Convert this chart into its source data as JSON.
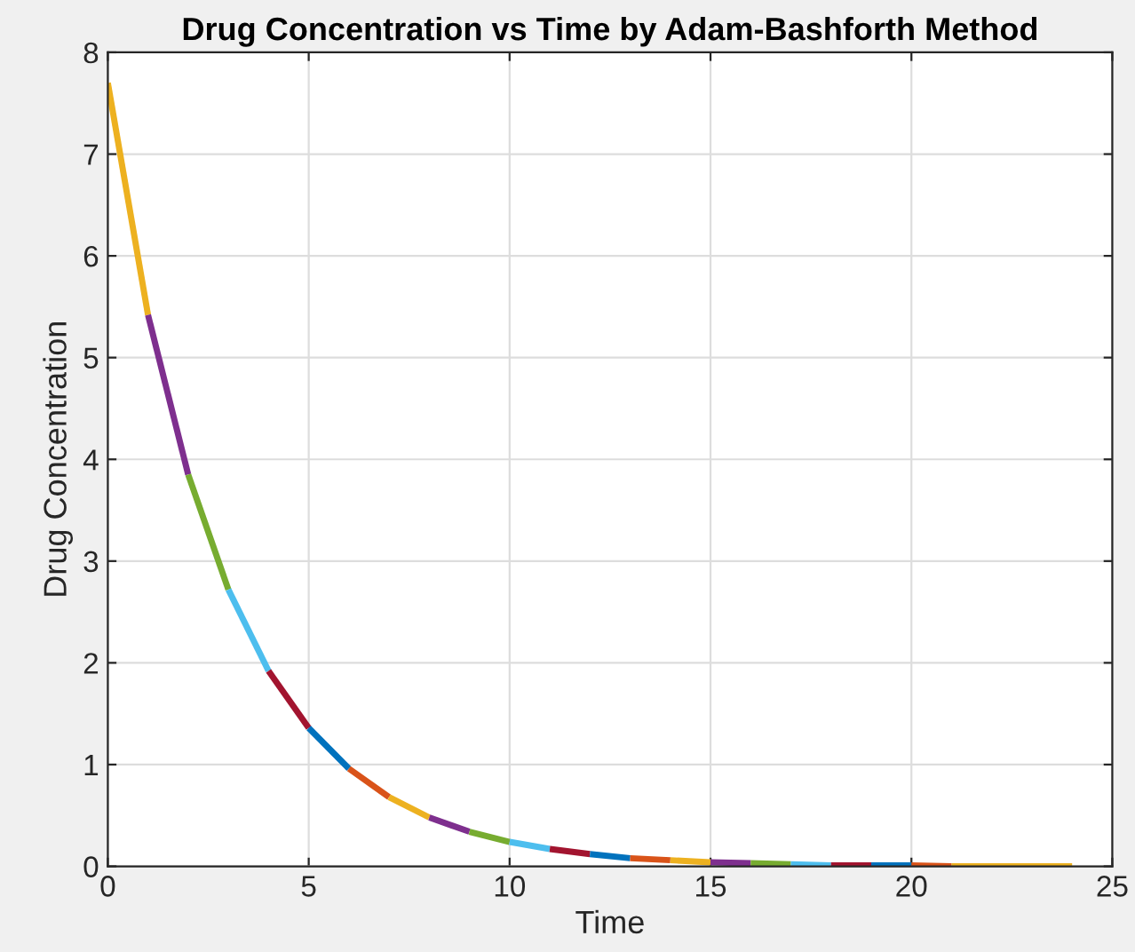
{
  "chart_data": {
    "type": "line",
    "title": "Drug Concentration vs Time by Adam-Bashforth Method",
    "xlabel": "Time",
    "ylabel": "Drug Concentration",
    "xlim": [
      0,
      25
    ],
    "ylim": [
      0,
      8
    ],
    "xticks": [
      0,
      5,
      10,
      15,
      20,
      25
    ],
    "yticks": [
      0,
      1,
      2,
      3,
      4,
      5,
      6,
      7,
      8
    ],
    "grid": true,
    "series": [
      {
        "color": "#edb120",
        "x": [
          0,
          1
        ],
        "values": [
          7.7,
          5.42
        ]
      },
      {
        "color": "#7e2f8e",
        "x": [
          1,
          2
        ],
        "values": [
          5.42,
          3.85
        ]
      },
      {
        "color": "#77ac30",
        "x": [
          2,
          3
        ],
        "values": [
          3.85,
          2.72
        ]
      },
      {
        "color": "#4dbeee",
        "x": [
          3,
          4
        ],
        "values": [
          2.72,
          1.92
        ]
      },
      {
        "color": "#a2142f",
        "x": [
          4,
          5
        ],
        "values": [
          1.92,
          1.36
        ]
      },
      {
        "color": "#0072bd",
        "x": [
          5,
          6
        ],
        "values": [
          1.36,
          0.96
        ]
      },
      {
        "color": "#d95319",
        "x": [
          6,
          7
        ],
        "values": [
          0.96,
          0.68
        ]
      },
      {
        "color": "#edb120",
        "x": [
          7,
          8
        ],
        "values": [
          0.68,
          0.48
        ]
      },
      {
        "color": "#7e2f8e",
        "x": [
          8,
          9
        ],
        "values": [
          0.48,
          0.34
        ]
      },
      {
        "color": "#77ac30",
        "x": [
          9,
          10
        ],
        "values": [
          0.34,
          0.24
        ]
      },
      {
        "color": "#4dbeee",
        "x": [
          10,
          11
        ],
        "values": [
          0.24,
          0.17
        ]
      },
      {
        "color": "#a2142f",
        "x": [
          11,
          12
        ],
        "values": [
          0.17,
          0.12
        ]
      },
      {
        "color": "#0072bd",
        "x": [
          12,
          13
        ],
        "values": [
          0.12,
          0.08
        ]
      },
      {
        "color": "#d95319",
        "x": [
          13,
          14
        ],
        "values": [
          0.08,
          0.06
        ]
      },
      {
        "color": "#edb120",
        "x": [
          14,
          15
        ],
        "values": [
          0.06,
          0.04
        ]
      },
      {
        "color": "#7e2f8e",
        "x": [
          15,
          16
        ],
        "values": [
          0.04,
          0.03
        ]
      },
      {
        "color": "#77ac30",
        "x": [
          16,
          17
        ],
        "values": [
          0.03,
          0.02
        ]
      },
      {
        "color": "#4dbeee",
        "x": [
          17,
          18
        ],
        "values": [
          0.02,
          0.01
        ]
      },
      {
        "color": "#a2142f",
        "x": [
          18,
          19
        ],
        "values": [
          0.01,
          0.01
        ]
      },
      {
        "color": "#0072bd",
        "x": [
          19,
          20
        ],
        "values": [
          0.01,
          0.01
        ]
      },
      {
        "color": "#d95319",
        "x": [
          20,
          21
        ],
        "values": [
          0.01,
          0.0
        ]
      },
      {
        "color": "#edb120",
        "x": [
          21,
          22,
          23,
          24
        ],
        "values": [
          0.0,
          0.0,
          0.0,
          0.0
        ]
      }
    ]
  }
}
